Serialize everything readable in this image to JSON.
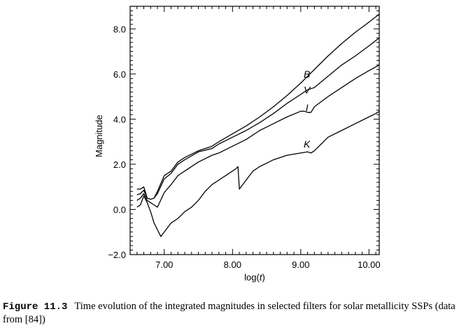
{
  "chart_data": {
    "type": "line",
    "xlabel": "log(t)",
    "ylabel": "Magnitude",
    "xlim": [
      6.5,
      10.15
    ],
    "ylim": [
      -2.0,
      9.0
    ],
    "xticks": [
      "7.00",
      "8.00",
      "9.00",
      "10.00"
    ],
    "xtick_values": [
      7.0,
      8.0,
      9.0,
      10.0
    ],
    "yticks": [
      "−2.0",
      "0.0",
      "2.0",
      "4.0",
      "6.0",
      "8.0"
    ],
    "ytick_values": [
      -2.0,
      0.0,
      2.0,
      4.0,
      6.0,
      8.0
    ],
    "grid": false,
    "series": [
      {
        "name": "B",
        "label_pos": [
          9.05,
          6.0
        ],
        "x": [
          6.6,
          6.65,
          6.7,
          6.75,
          6.8,
          6.85,
          6.9,
          7.0,
          7.1,
          7.2,
          7.3,
          7.5,
          7.7,
          7.8,
          8.0,
          8.2,
          8.4,
          8.6,
          8.8,
          9.0,
          9.1,
          9.2,
          9.4,
          9.6,
          9.8,
          10.0,
          10.15
        ],
        "y": [
          0.9,
          0.9,
          1.0,
          0.5,
          0.45,
          0.5,
          0.8,
          1.5,
          1.7,
          2.1,
          2.3,
          2.6,
          2.8,
          3.0,
          3.35,
          3.7,
          4.1,
          4.55,
          5.05,
          5.6,
          5.9,
          6.2,
          6.8,
          7.35,
          7.85,
          8.3,
          8.65
        ]
      },
      {
        "name": "V",
        "label_pos": [
          9.05,
          5.3
        ],
        "x": [
          6.6,
          6.65,
          6.7,
          6.75,
          6.8,
          6.85,
          6.9,
          7.0,
          7.1,
          7.2,
          7.3,
          7.5,
          7.7,
          7.8,
          8.0,
          8.2,
          8.4,
          8.6,
          8.8,
          9.0,
          9.1,
          9.2,
          9.4,
          9.6,
          9.8,
          10.0,
          10.15
        ],
        "y": [
          0.65,
          0.7,
          0.85,
          0.5,
          0.45,
          0.5,
          0.7,
          1.35,
          1.6,
          2.0,
          2.2,
          2.55,
          2.7,
          2.9,
          3.2,
          3.5,
          3.85,
          4.25,
          4.7,
          5.1,
          5.3,
          5.4,
          5.9,
          6.4,
          6.8,
          7.25,
          7.6
        ]
      },
      {
        "name": "I",
        "label_pos": [
          9.05,
          4.5
        ],
        "x": [
          6.6,
          6.65,
          6.7,
          6.75,
          6.8,
          6.85,
          6.9,
          7.0,
          7.1,
          7.2,
          7.3,
          7.5,
          7.7,
          7.8,
          8.0,
          8.2,
          8.4,
          8.6,
          8.8,
          9.0,
          9.05,
          9.1,
          9.15,
          9.2,
          9.4,
          9.6,
          9.8,
          10.0,
          10.15
        ],
        "y": [
          0.4,
          0.5,
          0.7,
          0.4,
          0.3,
          0.2,
          0.1,
          0.75,
          1.1,
          1.5,
          1.7,
          2.1,
          2.4,
          2.5,
          2.8,
          3.1,
          3.5,
          3.8,
          4.1,
          4.35,
          4.35,
          4.3,
          4.3,
          4.55,
          5.0,
          5.4,
          5.8,
          6.15,
          6.4
        ]
      },
      {
        "name": "K",
        "label_pos": [
          9.05,
          2.9
        ],
        "x": [
          6.6,
          6.65,
          6.7,
          6.75,
          6.8,
          6.85,
          6.9,
          6.95,
          7.0,
          7.05,
          7.1,
          7.2,
          7.3,
          7.4,
          7.5,
          7.6,
          7.7,
          7.8,
          7.9,
          8.0,
          8.05,
          8.08,
          8.1,
          8.2,
          8.3,
          8.4,
          8.6,
          8.8,
          9.0,
          9.1,
          9.15,
          9.2,
          9.3,
          9.4,
          9.6,
          9.8,
          10.0,
          10.1,
          10.15
        ],
        "y": [
          0.1,
          0.2,
          0.6,
          0.3,
          -0.1,
          -0.6,
          -0.9,
          -1.2,
          -1.0,
          -0.8,
          -0.6,
          -0.4,
          -0.1,
          0.1,
          0.4,
          0.8,
          1.1,
          1.3,
          1.5,
          1.7,
          1.8,
          1.9,
          0.9,
          1.3,
          1.7,
          1.9,
          2.2,
          2.4,
          2.5,
          2.55,
          2.5,
          2.6,
          2.9,
          3.2,
          3.5,
          3.8,
          4.1,
          4.25,
          4.35
        ]
      }
    ]
  },
  "caption": {
    "label": "Figure 11.3",
    "text": "Time evolution of the integrated magnitudes in selected filters for solar metallicity SSPs (data from [84])"
  }
}
